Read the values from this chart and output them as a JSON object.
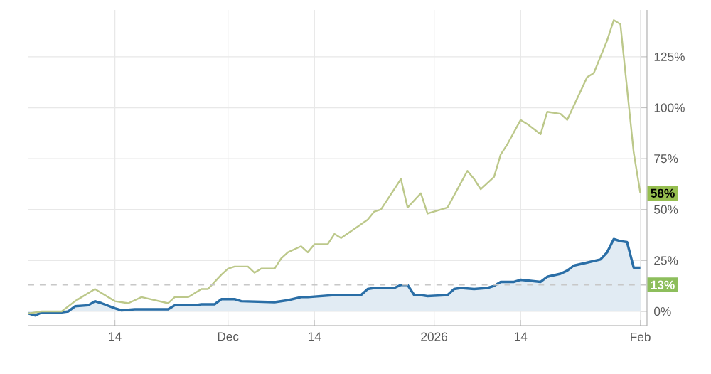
{
  "chart_data": {
    "type": "line",
    "xlim": [
      "2025-11-01",
      "2026-02-02"
    ],
    "ylim": [
      -7,
      148
    ],
    "xticks": [
      {
        "value": "2025-11-14",
        "label": "14"
      },
      {
        "value": "2025-12-01",
        "label": "Dec"
      },
      {
        "value": "2025-12-14",
        "label": "14"
      },
      {
        "value": "2026-01-01",
        "label": "2026"
      },
      {
        "value": "2026-01-14",
        "label": "14"
      },
      {
        "value": "2026-02-01",
        "label": "Feb"
      }
    ],
    "yticks": [
      {
        "value": 0,
        "label": "0%"
      },
      {
        "value": 25,
        "label": "25%"
      },
      {
        "value": 50,
        "label": "50%"
      },
      {
        "value": 75,
        "label": "75%"
      },
      {
        "value": 100,
        "label": "100%"
      },
      {
        "value": 125,
        "label": "125%"
      }
    ],
    "grid": true,
    "ref_lines": [
      {
        "axis": "y",
        "value": 13,
        "label": "13%",
        "color": "#c8c8c8",
        "line_style": "dashed"
      }
    ],
    "series": [
      {
        "color": "#bcc88a",
        "x": [
          "2025-11-01",
          "2025-11-03",
          "2025-11-06",
          "2025-11-08",
          "2025-11-09",
          "2025-11-11",
          "2025-11-12",
          "2025-11-14",
          "2025-11-16",
          "2025-11-18",
          "2025-11-22",
          "2025-11-23",
          "2025-11-25",
          "2025-11-27",
          "2025-11-28",
          "2025-11-30",
          "2025-12-01",
          "2025-12-02",
          "2025-12-04",
          "2025-12-05",
          "2025-12-06",
          "2025-12-08",
          "2025-12-09",
          "2025-12-10",
          "2025-12-12",
          "2025-12-13",
          "2025-12-14",
          "2025-12-16",
          "2025-12-17",
          "2025-12-18",
          "2025-12-22",
          "2025-12-23",
          "2025-12-24",
          "2025-12-27",
          "2025-12-28",
          "2025-12-30",
          "2025-12-31",
          "2026-01-03",
          "2026-01-06",
          "2026-01-07",
          "2026-01-08",
          "2026-01-10",
          "2026-01-11",
          "2026-01-12",
          "2026-01-14",
          "2026-01-15",
          "2026-01-17",
          "2026-01-18",
          "2026-01-20",
          "2026-01-21",
          "2026-01-22",
          "2026-01-24",
          "2026-01-25",
          "2026-01-27",
          "2026-01-28",
          "2026-01-29",
          "2026-01-31",
          "2026-02-01"
        ],
        "values": [
          -1,
          0,
          0,
          5,
          7,
          11,
          9,
          5,
          4,
          7,
          4,
          7,
          7,
          11,
          11,
          18,
          21,
          22,
          22,
          19,
          21,
          21,
          26,
          29,
          32,
          29,
          33,
          33,
          38,
          36,
          45,
          49,
          50,
          65,
          51,
          58,
          48,
          51,
          69,
          65,
          60,
          66,
          77,
          82,
          94,
          92,
          87,
          98,
          97,
          94,
          101,
          115,
          117,
          133,
          143,
          141,
          78,
          58
        ],
        "value_labels": [
          null,
          null,
          null,
          null,
          null,
          null,
          null,
          null,
          null,
          null,
          null,
          null,
          null,
          null,
          null,
          null,
          null,
          null,
          null,
          null,
          null,
          null,
          null,
          null,
          null,
          null,
          null,
          null,
          null,
          null,
          null,
          null,
          null,
          null,
          null,
          null,
          null,
          null,
          null,
          null,
          null,
          null,
          null,
          null,
          null,
          null,
          null,
          null,
          null,
          null,
          null,
          null,
          null,
          null,
          null,
          null,
          null,
          "58%"
        ]
      },
      {
        "type": "area",
        "color": "#2a6ea6",
        "x": [
          "2025-11-01",
          "2025-11-02",
          "2025-11-03",
          "2025-11-06",
          "2025-11-07",
          "2025-11-08",
          "2025-11-10",
          "2025-11-11",
          "2025-11-12",
          "2025-11-14",
          "2025-11-15",
          "2025-11-17",
          "2025-11-22",
          "2025-11-23",
          "2025-11-26",
          "2025-11-27",
          "2025-11-29",
          "2025-11-30",
          "2025-12-02",
          "2025-12-03",
          "2025-12-08",
          "2025-12-10",
          "2025-12-12",
          "2025-12-13",
          "2025-12-17",
          "2025-12-21",
          "2025-12-22",
          "2025-12-23",
          "2025-12-26",
          "2025-12-27",
          "2025-12-28",
          "2025-12-29",
          "2025-12-30",
          "2025-12-31",
          "2026-01-03",
          "2026-01-04",
          "2026-01-05",
          "2026-01-07",
          "2026-01-09",
          "2026-01-10",
          "2026-01-11",
          "2026-01-13",
          "2026-01-14",
          "2026-01-17",
          "2026-01-18",
          "2026-01-20",
          "2026-01-21",
          "2026-01-22",
          "2026-01-24",
          "2026-01-26",
          "2026-01-27",
          "2026-01-28",
          "2026-01-29",
          "2026-01-30",
          "2026-01-31",
          "2026-02-01"
        ],
        "values": [
          -1,
          -2,
          -0.5,
          -0.5,
          0,
          2.5,
          3,
          5,
          4,
          1.5,
          0.5,
          1,
          1,
          3,
          3,
          3.5,
          3.5,
          6,
          6,
          5,
          4.5,
          5.5,
          7,
          7,
          8,
          8,
          11,
          11.5,
          11.5,
          13,
          13,
          8,
          8,
          7.5,
          8,
          11,
          11.5,
          11,
          11.5,
          12.5,
          14.5,
          14.5,
          15.5,
          14.5,
          17,
          18.5,
          20,
          22.5,
          24,
          25.5,
          29,
          35.5,
          34.5,
          34,
          21.5,
          21.5
        ]
      }
    ]
  }
}
